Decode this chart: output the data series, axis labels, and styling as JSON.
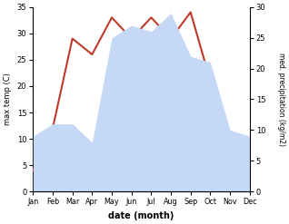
{
  "months": [
    "Jan",
    "Feb",
    "Mar",
    "Apr",
    "May",
    "Jun",
    "Jul",
    "Aug",
    "Sep",
    "Oct",
    "Nov",
    "Dec"
  ],
  "temperature": [
    4,
    12,
    29,
    26,
    33,
    29,
    33,
    29,
    34,
    21,
    10,
    4
  ],
  "precipitation": [
    9,
    11,
    11,
    8,
    25,
    27,
    26,
    29,
    22,
    21,
    10,
    9
  ],
  "temp_ylim": [
    0,
    35
  ],
  "precip_ylim": [
    0,
    30
  ],
  "temp_yticks": [
    0,
    5,
    10,
    15,
    20,
    25,
    30,
    35
  ],
  "precip_yticks": [
    0,
    5,
    10,
    15,
    20,
    25,
    30
  ],
  "temp_color": "#c0392b",
  "precip_fill_color": "#c5d8f5",
  "xlabel": "date (month)",
  "ylabel_left": "max temp (C)",
  "ylabel_right": "med. precipitation (kg/m2)",
  "bg_color": "#ffffff"
}
